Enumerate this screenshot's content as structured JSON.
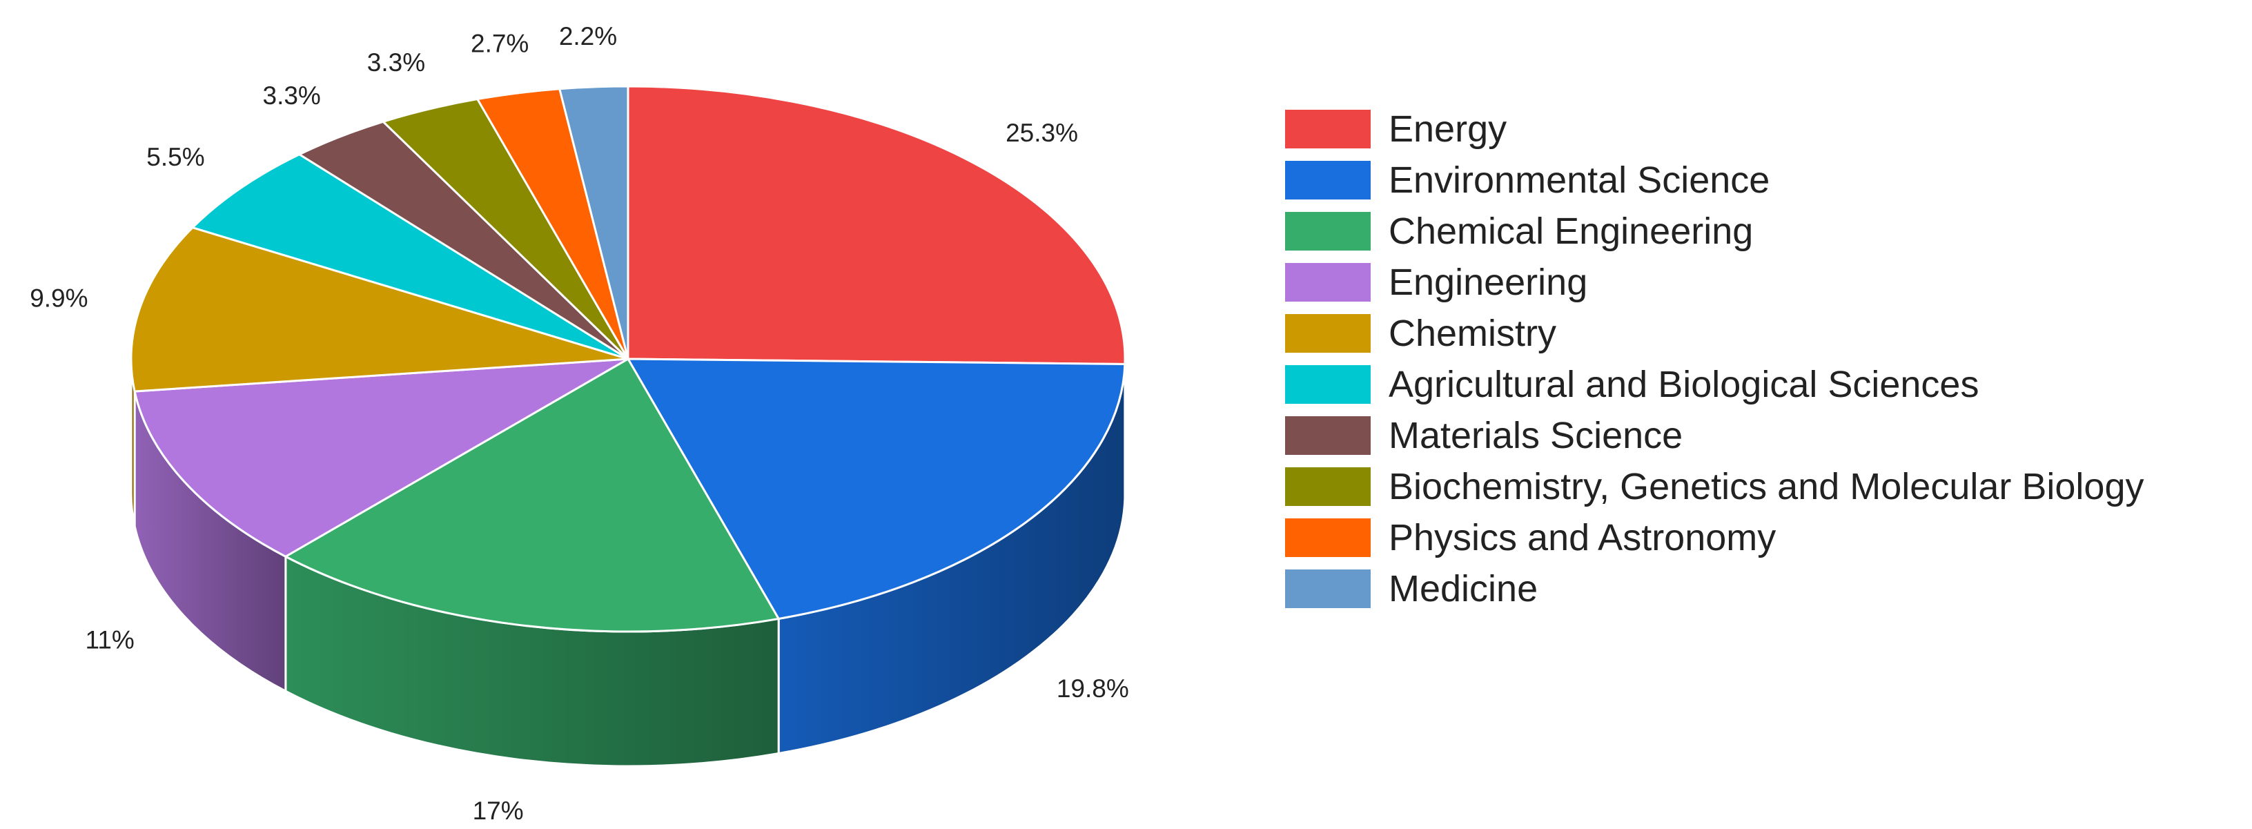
{
  "chart_data": {
    "type": "pie",
    "style": "3d",
    "legend_position": "right",
    "categories": [
      "Energy",
      "Environmental Science",
      "Chemical Engineering",
      "Engineering",
      "Chemistry",
      "Agricultural and Biological Sciences",
      "Materials Science",
      "Biochemistry, Genetics and Molecular Biology",
      "Physics and Astronomy",
      "Medicine"
    ],
    "values": [
      25.3,
      19.8,
      17,
      11,
      9.9,
      5.5,
      3.3,
      3.3,
      2.7,
      2.2
    ],
    "data_labels": [
      "25.3%",
      "19.8%",
      "17%",
      "11%",
      "9.9%",
      "5.5%",
      "3.3%",
      "3.3%",
      "2.7%",
      "2.2%"
    ],
    "colors": [
      "#ef4444",
      "#1a6fdf",
      "#37ad6b",
      "#b177de",
      "#cc9900",
      "#00c8d0",
      "#7e4f4f",
      "#8a8a00",
      "#ff6200",
      "#6699cc"
    ]
  }
}
